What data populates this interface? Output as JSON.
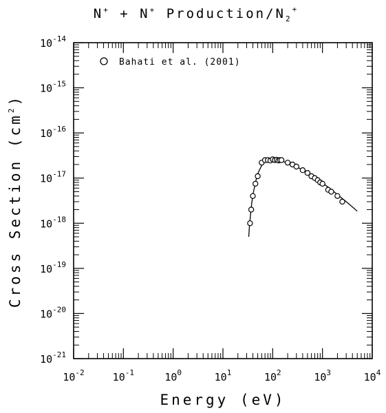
{
  "chart_data": {
    "type": "scatter",
    "title": {
      "base1": "N",
      "sup1": "+",
      "mid": " + N",
      "sup2": "+",
      "tail": " Production/N",
      "sub": "2",
      "sup3": "+"
    },
    "xlabel": "Energy (eV)",
    "ylabel": {
      "main": "Cross Section (cm",
      "sup": "2",
      "end": ")"
    },
    "x_scale": "log",
    "y_scale": "log",
    "xlim": [
      0.01,
      10000
    ],
    "ylim": [
      1e-21,
      1e-14
    ],
    "x_ticks": [
      {
        "base": "10",
        "exp": "-2"
      },
      {
        "base": "10",
        "exp": "-1"
      },
      {
        "base": "10",
        "exp": "0"
      },
      {
        "base": "10",
        "exp": "1"
      },
      {
        "base": "10",
        "exp": "2"
      },
      {
        "base": "10",
        "exp": "3"
      },
      {
        "base": "10",
        "exp": "4"
      }
    ],
    "y_ticks": [
      {
        "base": "10",
        "exp": "-21"
      },
      {
        "base": "10",
        "exp": "-20"
      },
      {
        "base": "10",
        "exp": "-19"
      },
      {
        "base": "10",
        "exp": "-18"
      },
      {
        "base": "10",
        "exp": "-17"
      },
      {
        "base": "10",
        "exp": "-16"
      },
      {
        "base": "10",
        "exp": "-15"
      },
      {
        "base": "10",
        "exp": "-14"
      }
    ],
    "grid": false,
    "legend_position": "top-left",
    "series": [
      {
        "name": "Bahati et al. (2001)",
        "marker": "open-circle",
        "x": [
          35,
          37,
          40,
          45,
          50,
          60,
          70,
          80,
          90,
          100,
          110,
          120,
          130,
          140,
          150,
          200,
          250,
          300,
          400,
          500,
          600,
          700,
          800,
          900,
          1000,
          1300,
          1500,
          2000,
          2500
        ],
        "y": [
          1e-18,
          2e-18,
          4e-18,
          7.5e-18,
          1.1e-17,
          2.2e-17,
          2.5e-17,
          2.5e-17,
          2.45e-17,
          2.6e-17,
          2.5e-17,
          2.55e-17,
          2.45e-17,
          2.5e-17,
          2.5e-17,
          2.2e-17,
          2e-17,
          1.8e-17,
          1.5e-17,
          1.3e-17,
          1.1e-17,
          1e-17,
          9e-18,
          8e-18,
          7.5e-18,
          5.5e-18,
          5e-18,
          4e-18,
          3e-18
        ]
      },
      {
        "name": "",
        "style": "line",
        "x": [
          33,
          34,
          36,
          38,
          40,
          45,
          50,
          60,
          70,
          80,
          100,
          120,
          150,
          200,
          300,
          500,
          700,
          1000,
          1500,
          2000,
          3000,
          4000,
          5000
        ],
        "y": [
          5e-19,
          8e-19,
          1.6e-18,
          2.8e-18,
          4.2e-18,
          8e-18,
          1.25e-17,
          1.9e-17,
          2.3e-17,
          2.5e-17,
          2.55e-17,
          2.5e-17,
          2.4e-17,
          2.15e-17,
          1.8e-17,
          1.3e-17,
          1.05e-17,
          7.8e-18,
          5.6e-18,
          4.3e-18,
          3e-18,
          2.3e-18,
          1.85e-18
        ]
      }
    ]
  }
}
